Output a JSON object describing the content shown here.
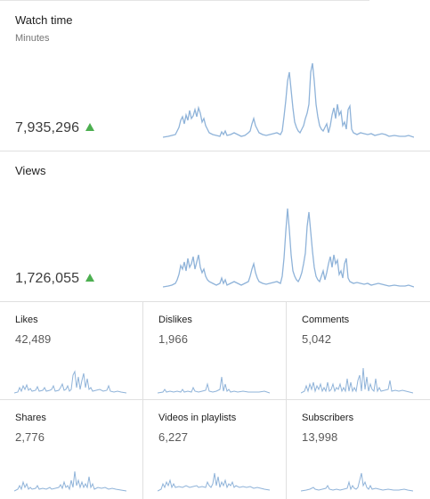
{
  "watch_time": {
    "title": "Watch time",
    "subtitle": "Minutes",
    "value": "7,935,296",
    "trend": "up",
    "trend_color": "#4caf50",
    "line_color": "#8fb3d9"
  },
  "views": {
    "title": "Views",
    "value": "1,726,055",
    "trend": "up",
    "trend_color": "#4caf50",
    "line_color": "#8fb3d9"
  },
  "metrics": [
    {
      "title": "Likes",
      "value": "42,489"
    },
    {
      "title": "Dislikes",
      "value": "1,966"
    },
    {
      "title": "Comments",
      "value": "5,042"
    },
    {
      "title": "Shares",
      "value": "2,776"
    },
    {
      "title": "Videos in playlists",
      "value": "6,227"
    },
    {
      "title": "Subscribers",
      "value": "13,998"
    }
  ]
}
